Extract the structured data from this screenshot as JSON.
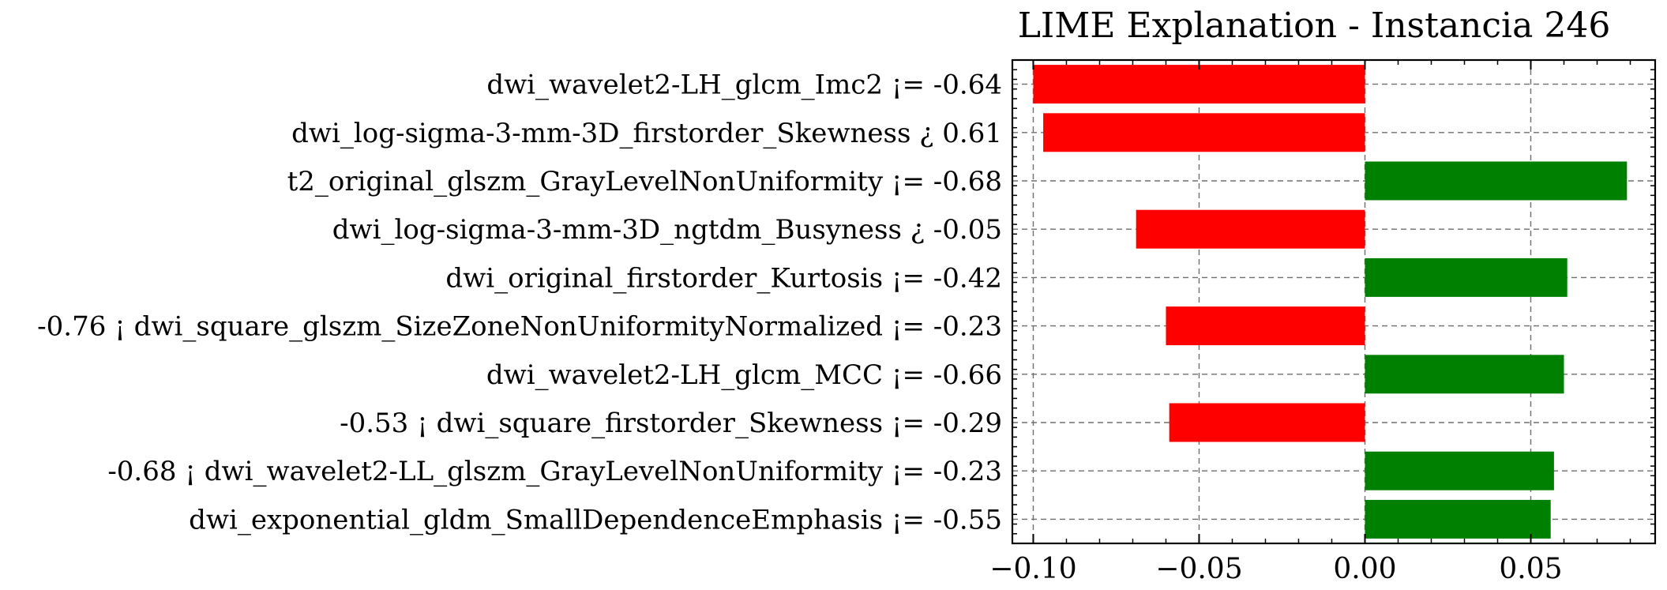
{
  "chart_data": {
    "type": "bar",
    "orientation": "horizontal",
    "title": "LIME Explanation - Instancia 246",
    "xlabel": "",
    "ylabel": "",
    "xlim": [
      -0.1063,
      0.0875
    ],
    "xticks": [
      -0.1,
      -0.05,
      0.0,
      0.05
    ],
    "xtick_labels": [
      "−0.10",
      "−0.05",
      "0.00",
      "0.05"
    ],
    "grid": true,
    "colors": {
      "positive": "#008000",
      "negative": "#ff0000"
    },
    "categories": [
      "dwi_wavelet2-LH_glcm_Imc2 ¡= -0.64",
      "dwi_log-sigma-3-mm-3D_firstorder_Skewness ¿ 0.61",
      "t2_original_glszm_GrayLevelNonUniformity ¡= -0.68",
      "dwi_log-sigma-3-mm-3D_ngtdm_Busyness ¿ -0.05",
      "dwi_original_firstorder_Kurtosis ¡= -0.42",
      "-0.76 ¡ dwi_square_glszm_SizeZoneNonUniformityNormalized ¡= -0.23",
      "dwi_wavelet2-LH_glcm_MCC ¡= -0.66",
      "-0.53 ¡ dwi_square_firstorder_Skewness ¡= -0.29",
      "-0.68 ¡ dwi_wavelet2-LL_glszm_GrayLevelNonUniformity ¡= -0.23",
      "dwi_exponential_gldm_SmallDependenceEmphasis ¡= -0.55"
    ],
    "values": [
      -0.1,
      -0.097,
      0.079,
      -0.069,
      0.061,
      -0.06,
      0.06,
      -0.059,
      0.057,
      0.056
    ]
  }
}
